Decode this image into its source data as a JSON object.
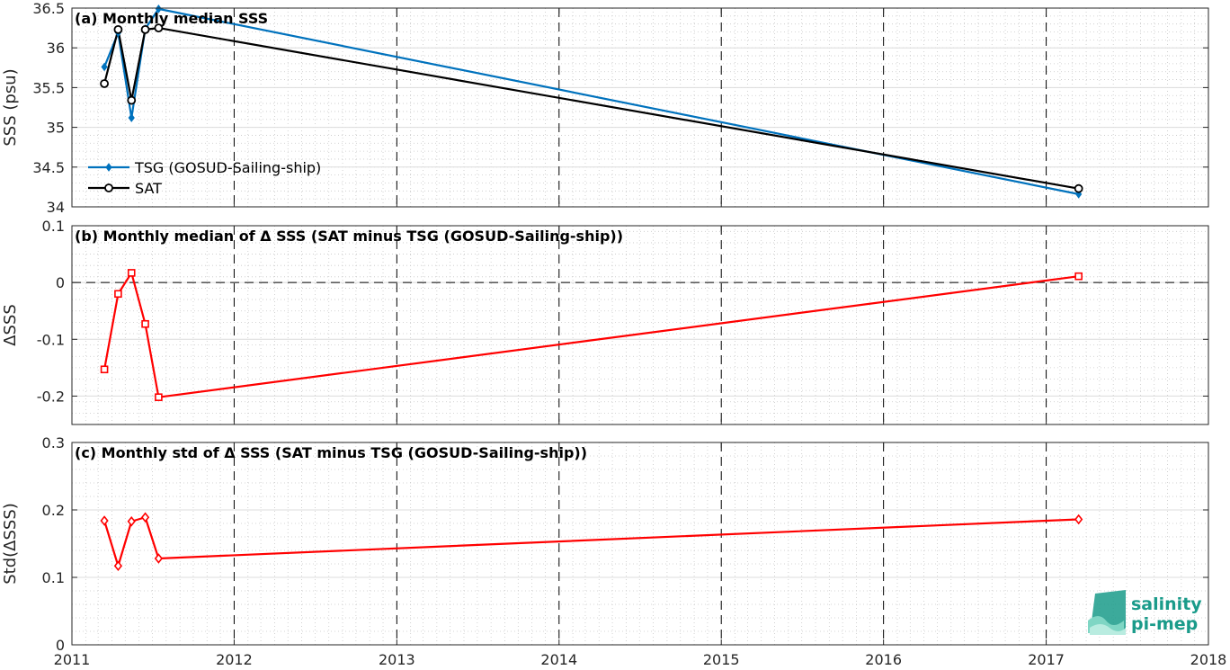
{
  "chart_data": [
    {
      "type": "line",
      "title": "(a) Monthly median SSS",
      "ylabel": "SSS (psu)",
      "ylim": [
        34,
        36.5
      ],
      "yticks": [
        "34",
        "34.5",
        "35",
        "35.5",
        "36",
        "36.5"
      ],
      "xlim": [
        "2011-01-01",
        "2018-01-01"
      ],
      "xticks": [
        "2011",
        "2012",
        "2013",
        "2014",
        "2015",
        "2016",
        "2017",
        "2018"
      ],
      "grid": true,
      "legend_position": "bottom-left",
      "series": [
        {
          "name": "TSG (GOSUD-Sailing-ship)",
          "color": "#0072BD",
          "marker": "filled-diamond",
          "x": [
            "2011-03-15",
            "2011-04-15",
            "2011-05-15",
            "2011-06-15",
            "2011-07-15",
            "2017-03-15"
          ],
          "y": [
            35.76,
            36.19,
            35.12,
            36.24,
            36.49,
            34.16
          ]
        },
        {
          "name": "SAT",
          "color": "#000000",
          "marker": "circle",
          "x": [
            "2011-03-15",
            "2011-04-15",
            "2011-05-15",
            "2011-06-15",
            "2011-07-15",
            "2017-03-15"
          ],
          "y": [
            35.55,
            36.23,
            35.34,
            36.23,
            36.25,
            34.23
          ]
        }
      ]
    },
    {
      "type": "line",
      "title": "(b) Monthly median of Δ SSS (SAT minus TSG (GOSUD-Sailing-ship))",
      "ylabel": "ΔSSS",
      "ylim": [
        -0.25,
        0.1
      ],
      "yticks": [
        "-0.2",
        "-0.1",
        "0",
        "0.1"
      ],
      "xlim": [
        "2011-01-01",
        "2018-01-01"
      ],
      "xticks": [
        "2011",
        "2012",
        "2013",
        "2014",
        "2015",
        "2016",
        "2017",
        "2018"
      ],
      "grid": true,
      "zero_line": true,
      "series": [
        {
          "color": "#FF0000",
          "marker": "square",
          "x": [
            "2011-03-15",
            "2011-04-15",
            "2011-05-15",
            "2011-06-15",
            "2011-07-15",
            "2017-03-15"
          ],
          "y": [
            -0.153,
            -0.02,
            0.017,
            -0.073,
            -0.202,
            0.011
          ]
        }
      ]
    },
    {
      "type": "line",
      "title": "(c) Monthly std of Δ SSS (SAT minus TSG (GOSUD-Sailing-ship))",
      "ylabel": "Std(ΔSSS)",
      "ylim": [
        0,
        0.3
      ],
      "yticks": [
        "0",
        "0.1",
        "0.2",
        "0.3"
      ],
      "xlim": [
        "2011-01-01",
        "2018-01-01"
      ],
      "xticks": [
        "2011",
        "2012",
        "2013",
        "2014",
        "2015",
        "2016",
        "2017",
        "2018"
      ],
      "grid": true,
      "series": [
        {
          "color": "#FF0000",
          "marker": "diamond",
          "x": [
            "2011-03-15",
            "2011-04-15",
            "2011-05-15",
            "2011-06-15",
            "2011-07-15",
            "2017-03-15"
          ],
          "y": [
            0.184,
            0.117,
            0.183,
            0.189,
            0.128,
            0.186
          ]
        }
      ]
    }
  ],
  "logo": {
    "line1": "salinity",
    "line2": "pi-mep",
    "color": "#1a9b8a"
  }
}
